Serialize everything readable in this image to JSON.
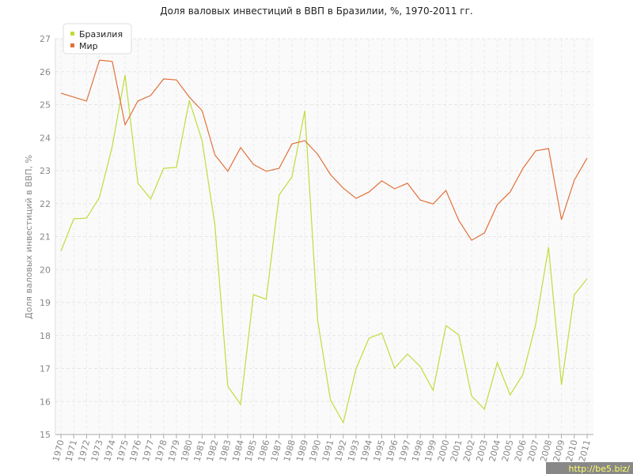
{
  "chart_data": {
    "type": "line",
    "title": "Доля валовых инвестиций в ВВП в Бразилии, %, 1970-2011 гг.",
    "y_label": "Доля валовых инвестиций в ВВП, %",
    "watermark": "http://be5.biz/",
    "x": [
      1970,
      1971,
      1972,
      1973,
      1974,
      1975,
      1976,
      1977,
      1978,
      1979,
      1980,
      1981,
      1982,
      1983,
      1984,
      1985,
      1986,
      1987,
      1988,
      1989,
      1990,
      1991,
      1992,
      1993,
      1994,
      1995,
      1996,
      1997,
      1998,
      1999,
      2000,
      2001,
      2002,
      2003,
      2004,
      2005,
      2006,
      2007,
      2008,
      2009,
      2010,
      2011
    ],
    "xlim": [
      1970,
      2011
    ],
    "xticks": [
      1970,
      1971,
      1972,
      1973,
      1974,
      1975,
      1976,
      1977,
      1978,
      1979,
      1980,
      1981,
      1982,
      1983,
      1984,
      1985,
      1986,
      1987,
      1988,
      1989,
      1990,
      1991,
      1992,
      1993,
      1994,
      1995,
      1996,
      1997,
      1998,
      1999,
      2000,
      2001,
      2002,
      2003,
      2004,
      2005,
      2006,
      2007,
      2008,
      2009,
      2010,
      2011
    ],
    "ylim": [
      15,
      27
    ],
    "yticks": [
      15,
      16,
      17,
      18,
      19,
      20,
      21,
      22,
      23,
      24,
      25,
      26,
      27
    ],
    "grid": true,
    "legend": "top-left",
    "series": [
      {
        "name": "Бразилия",
        "color": "#bedd3c",
        "values": [
          20.56,
          21.54,
          21.56,
          22.19,
          23.74,
          25.9,
          22.62,
          22.14,
          23.07,
          23.1,
          25.13,
          23.91,
          21.35,
          16.46,
          15.91,
          19.24,
          19.1,
          22.26,
          22.81,
          24.82,
          18.47,
          16.05,
          15.36,
          16.99,
          17.92,
          18.07,
          17.01,
          17.44,
          17.06,
          16.34,
          18.3,
          18.02,
          16.17,
          15.77,
          17.18,
          16.2,
          16.82,
          18.35,
          20.68,
          16.51,
          19.24,
          19.72
        ]
      },
      {
        "name": "Мир",
        "color": "#e2703a",
        "values": [
          25.35,
          25.23,
          25.11,
          26.35,
          26.31,
          24.39,
          25.11,
          25.28,
          25.78,
          25.75,
          25.23,
          24.82,
          23.48,
          22.98,
          23.7,
          23.19,
          22.98,
          23.07,
          23.81,
          23.91,
          23.5,
          22.88,
          22.47,
          22.16,
          22.35,
          22.69,
          22.45,
          22.62,
          22.11,
          21.99,
          22.4,
          21.49,
          20.89,
          21.11,
          21.97,
          22.35,
          23.07,
          23.6,
          23.67,
          21.51,
          22.71,
          23.38
        ]
      }
    ]
  }
}
